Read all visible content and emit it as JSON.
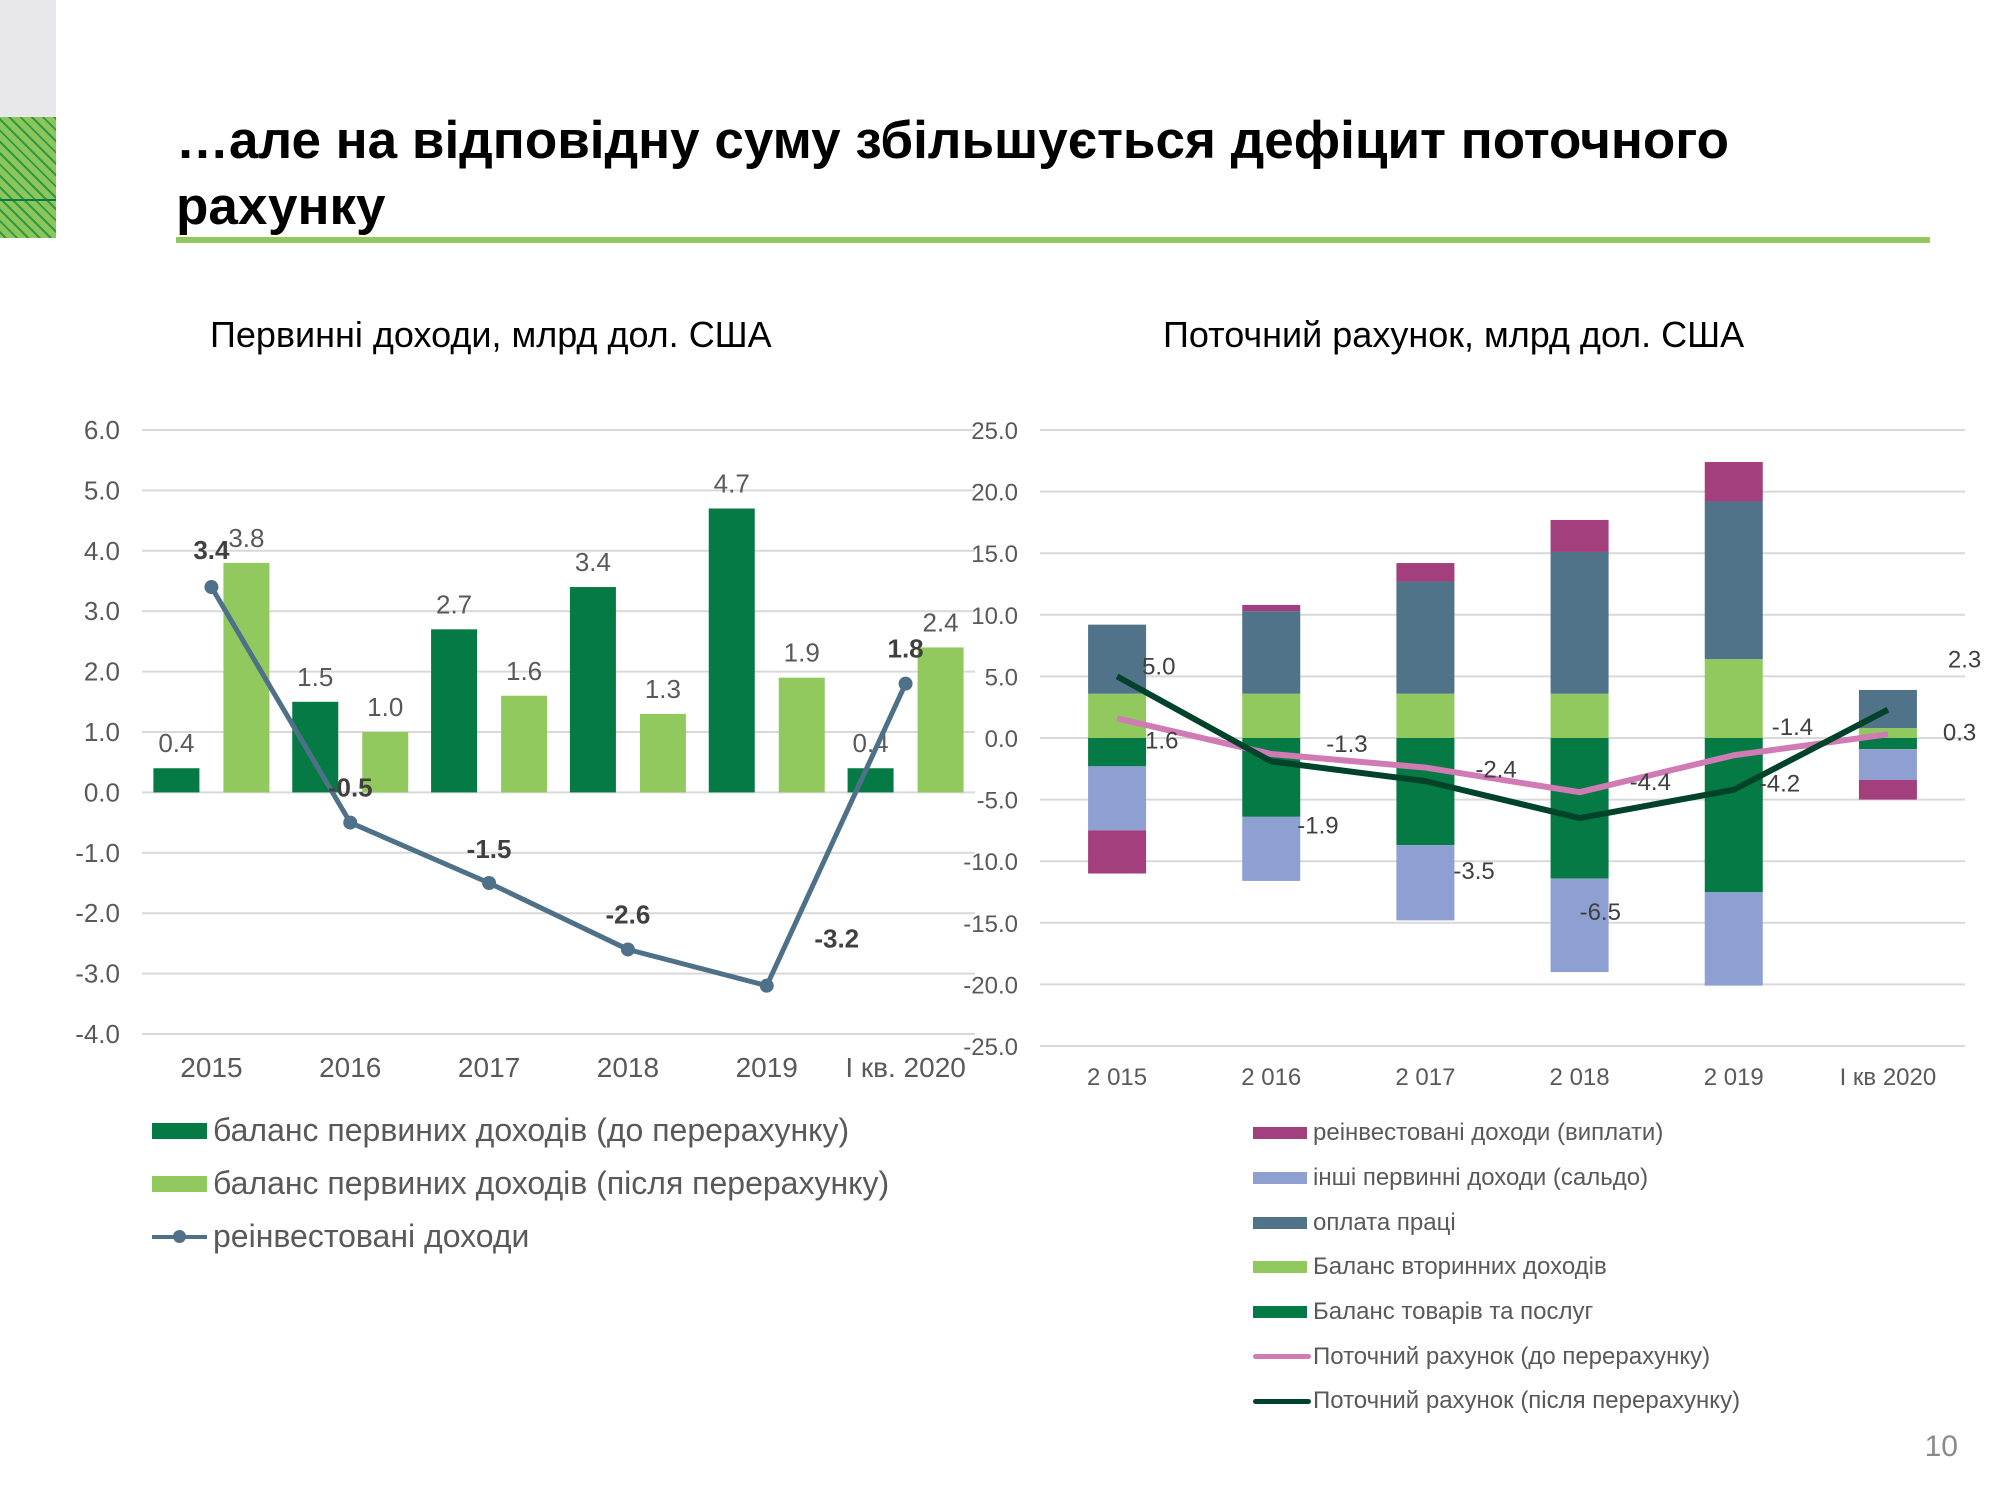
{
  "slide": {
    "title": "…але на відповідну суму збільшується дефіцит поточного рахунку",
    "page_number": "10"
  },
  "chart_data": [
    {
      "type": "bar",
      "title": "Первинні доходи, млрд дол. США",
      "categories": [
        "2015",
        "2016",
        "2017",
        "2018",
        "2019",
        "I кв. 2020"
      ],
      "ylim": [
        -4,
        6
      ],
      "yticks": [
        "6.0",
        "5.0",
        "4.0",
        "3.0",
        "2.0",
        "1.0",
        "0.0",
        "-1.0",
        "-2.0",
        "-3.0",
        "-4.0"
      ],
      "grid": true,
      "legend_position": "bottom",
      "series": [
        {
          "name": "баланс первиних доходів (до перерахунку)",
          "kind": "bar",
          "color": "#067a45",
          "values": [
            0.4,
            1.5,
            2.7,
            3.4,
            4.7,
            0.4
          ],
          "labels": [
            "0.4",
            "1.5",
            "2.7",
            "3.4",
            "4.7",
            "0.4"
          ]
        },
        {
          "name": "баланс первиних доходів (після перерахунку)",
          "kind": "bar",
          "color": "#92c95f",
          "values": [
            3.8,
            1.0,
            1.6,
            1.3,
            1.9,
            2.4
          ],
          "labels": [
            "3.8",
            "1.0",
            "1.6",
            "1.3",
            "1.9",
            "2.4"
          ]
        },
        {
          "name": "реінвестовані доходи",
          "kind": "line",
          "color": "#4e7189",
          "values": [
            3.4,
            -0.5,
            -1.5,
            -2.6,
            -3.2,
            1.8
          ],
          "labels": [
            "3.4",
            "-0.5",
            "-1.5",
            "-2.6",
            "-3.2",
            "1.8"
          ]
        }
      ]
    },
    {
      "type": "bar",
      "stacked": true,
      "title": "Поточний рахунок, млрд дол. США",
      "categories": [
        "2 015",
        "2 016",
        "2 017",
        "2 018",
        "2 019",
        "I кв 2020"
      ],
      "ylim": [
        -25,
        25
      ],
      "yticks": [
        "25.0",
        "20.0",
        "15.0",
        "10.0",
        "5.0",
        "0.0",
        "-5.0",
        "-10.0",
        "-15.0",
        "-20.0",
        "-25.0"
      ],
      "grid": true,
      "legend_position": "bottom",
      "series": [
        {
          "name": "Баланс товарів та послуг",
          "kind": "bar",
          "color": "#067a45",
          "values": [
            -2.3,
            -6.4,
            -8.7,
            -11.4,
            -12.5,
            -0.9
          ]
        },
        {
          "name": "Баланс вторинних доходів",
          "kind": "bar",
          "color": "#92c95f",
          "values": [
            3.6,
            3.6,
            3.6,
            3.6,
            6.4,
            0.8
          ]
        },
        {
          "name": "оплата праці",
          "kind": "bar",
          "color": "#50738a",
          "values": [
            5.6,
            6.7,
            9.1,
            11.5,
            12.8,
            3.1
          ]
        },
        {
          "name": "інші первинні доходи  (сальдо)",
          "kind": "bar",
          "color": "#8e9fd1",
          "values": [
            -5.2,
            -5.2,
            -6.1,
            -7.6,
            -7.6,
            -2.5
          ]
        },
        {
          "name": "реінвестовані доходи (виплати)",
          "kind": "bar",
          "color": "#a23f7c",
          "values": [
            -3.5,
            0.5,
            1.5,
            2.6,
            3.2,
            -1.6
          ]
        },
        {
          "name": "Поточний рахунок (до перерахунку)",
          "kind": "line",
          "color": "#d07bb4",
          "values": [
            1.6,
            -1.3,
            -2.4,
            -4.4,
            -1.4,
            0.3
          ],
          "labels": [
            "1.6",
            "-1.3",
            "-2.4",
            "-4.4",
            "-1.4",
            "0.3"
          ]
        },
        {
          "name": "Поточний рахунок (після перерахунку)",
          "kind": "line",
          "color": "#00432a",
          "values": [
            5.0,
            -1.9,
            -3.5,
            -6.5,
            -4.2,
            2.3
          ],
          "labels": [
            "5.0",
            "-1.9",
            "-3.5",
            "-6.5",
            "-4.2",
            "2.3"
          ]
        }
      ],
      "legend_order": [
        4,
        3,
        2,
        1,
        0,
        5,
        6
      ]
    }
  ]
}
